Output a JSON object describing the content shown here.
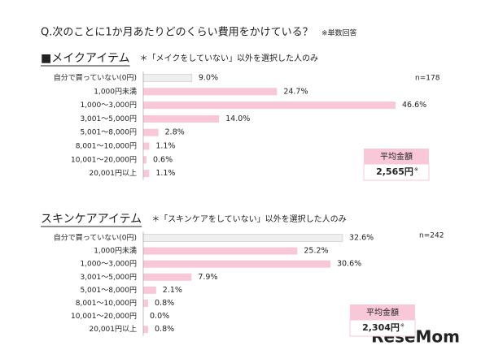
{
  "title": "Q.次のことに1か月あたりどのくらい費用をかけている？",
  "title_note": "※単数回答",
  "watermark": "ReseMom",
  "chart_data": [
    {
      "type": "bar",
      "orientation": "horizontal",
      "heading": "■メイクアイテム",
      "subheading": "＊「メイクをしていない」以外を選択した人のみ",
      "n": "n=178",
      "categories": [
        "自分で買っていない(0円)",
        "1,000円未満",
        "1,000～3,000円",
        "3,001～5,000円",
        "5,001～8,000円",
        "8,001～10,000円",
        "10,001～20,000円",
        "20,001円以上"
      ],
      "values": [
        9.0,
        24.7,
        46.6,
        14.0,
        2.8,
        1.1,
        0.6,
        1.1
      ],
      "value_labels": [
        "9.0%",
        "24.7%",
        "46.6%",
        "14.0%",
        "2.8%",
        "1.1%",
        "0.6%",
        "1.1%"
      ],
      "colors": [
        "#efefef",
        "#f8c8d8",
        "#f8c8d8",
        "#f8c8d8",
        "#f8c8d8",
        "#f8c8d8",
        "#f8c8d8",
        "#f8c8d8"
      ],
      "average_title": "平均金額",
      "average_value": "2,565円",
      "average_note": "※"
    },
    {
      "type": "bar",
      "orientation": "horizontal",
      "heading": "スキンケアアイテム",
      "subheading": "＊「スキンケアをしていない」以外を選択した人のみ",
      "n": "n=242",
      "categories": [
        "自分で買っていない(0円)",
        "1,000円未満",
        "1,000～3,000円",
        "3,001～5,000円",
        "5,001～8,000円",
        "8,001～10,000円",
        "10,001～20,000円",
        "20,001円以上"
      ],
      "values": [
        32.6,
        25.2,
        30.6,
        7.9,
        2.1,
        0.8,
        0.0,
        0.8
      ],
      "value_labels": [
        "32.6%",
        "25.2%",
        "30.6%",
        "7.9%",
        "2.1%",
        "0.8%",
        "0.0%",
        "0.8%"
      ],
      "colors": [
        "#efefef",
        "#f8c8d8",
        "#f8c8d8",
        "#f8c8d8",
        "#f8c8d8",
        "#f8c8d8",
        "#f8c8d8",
        "#f8c8d8"
      ],
      "average_title": "平均金額",
      "average_value": "2,304円",
      "average_note": "※"
    }
  ]
}
